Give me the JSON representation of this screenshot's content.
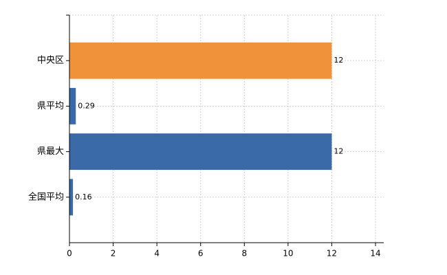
{
  "chart_data": {
    "type": "hbar",
    "categories": [
      "中央区",
      "県平均",
      "県最大",
      "全国平均"
    ],
    "values": [
      12,
      0.29,
      12,
      0.16
    ],
    "colors": [
      "#f0923a",
      "#3a6aa8",
      "#3a6aa8",
      "#3a6aa8"
    ],
    "xlim": [
      0,
      14
    ],
    "xticks": [
      0,
      2,
      4,
      6,
      8,
      10,
      12,
      14
    ],
    "grid": true
  }
}
